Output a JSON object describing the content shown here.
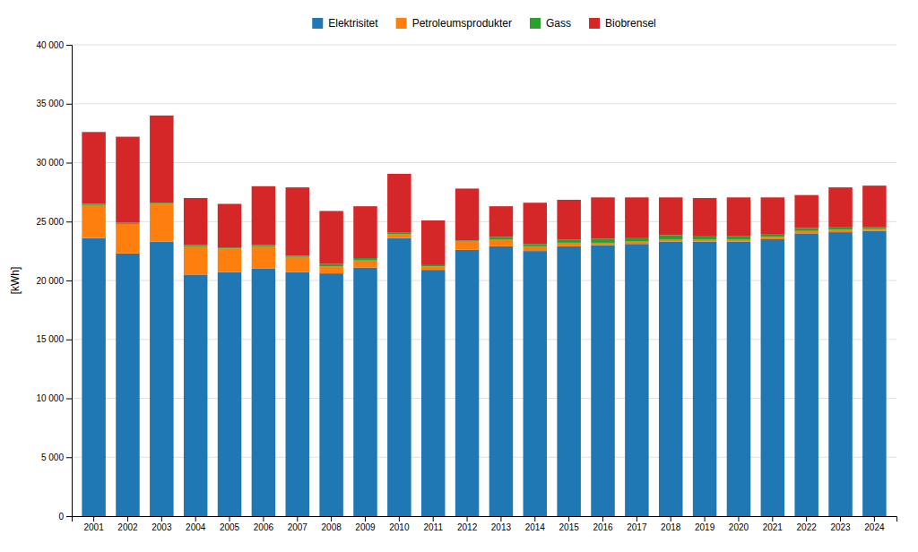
{
  "chart_data": {
    "type": "bar",
    "stacked": true,
    "categories": [
      "2001",
      "2002",
      "2003",
      "2004",
      "2005",
      "2006",
      "2007",
      "2008",
      "2009",
      "2010",
      "2011",
      "2012",
      "2013",
      "2014",
      "2015",
      "2016",
      "2017",
      "2018",
      "2019",
      "2020",
      "2021",
      "2022",
      "2023",
      "2024"
    ],
    "series": [
      {
        "name": "Elektrisitet",
        "values": [
          23600,
          22300,
          23300,
          20500,
          20700,
          21000,
          20700,
          20600,
          21100,
          23600,
          20900,
          22600,
          22900,
          22500,
          22900,
          23000,
          23100,
          23300,
          23300,
          23300,
          23500,
          24000,
          24100,
          24200
        ]
      },
      {
        "name": "Petroleumsprodukter",
        "values": [
          2800,
          2500,
          3200,
          2400,
          2000,
          1900,
          1300,
          600,
          600,
          350,
          300,
          700,
          600,
          400,
          300,
          200,
          200,
          200,
          200,
          200,
          200,
          200,
          200,
          200
        ]
      },
      {
        "name": "Gass",
        "values": [
          100,
          100,
          100,
          100,
          100,
          100,
          100,
          200,
          200,
          100,
          100,
          100,
          200,
          200,
          250,
          350,
          350,
          350,
          300,
          250,
          250,
          250,
          200,
          150
        ]
      },
      {
        "name": "Biobrensel",
        "values": [
          6100,
          7300,
          7400,
          4000,
          3700,
          5000,
          5800,
          4500,
          4400,
          5000,
          3800,
          4400,
          2600,
          3500,
          3400,
          3500,
          3400,
          3200,
          3200,
          3300,
          3100,
          2800,
          3400,
          3500
        ]
      }
    ],
    "y_label": "[kWh]",
    "ylim": [
      0,
      40000
    ],
    "yticks": [
      0,
      {
        "value": 5000,
        "label": "5 000"
      },
      {
        "value": 10000,
        "label": "10 000"
      },
      {
        "value": 15000,
        "label": "15 000"
      },
      {
        "value": 20000,
        "label": "20 000"
      },
      {
        "value": 25000,
        "label": "25 000"
      },
      {
        "value": 30000,
        "label": "30 000"
      },
      {
        "value": 35000,
        "label": "35 000"
      },
      {
        "value": 40000,
        "label": "40 000"
      }
    ],
    "grid": true,
    "legend": "top"
  }
}
